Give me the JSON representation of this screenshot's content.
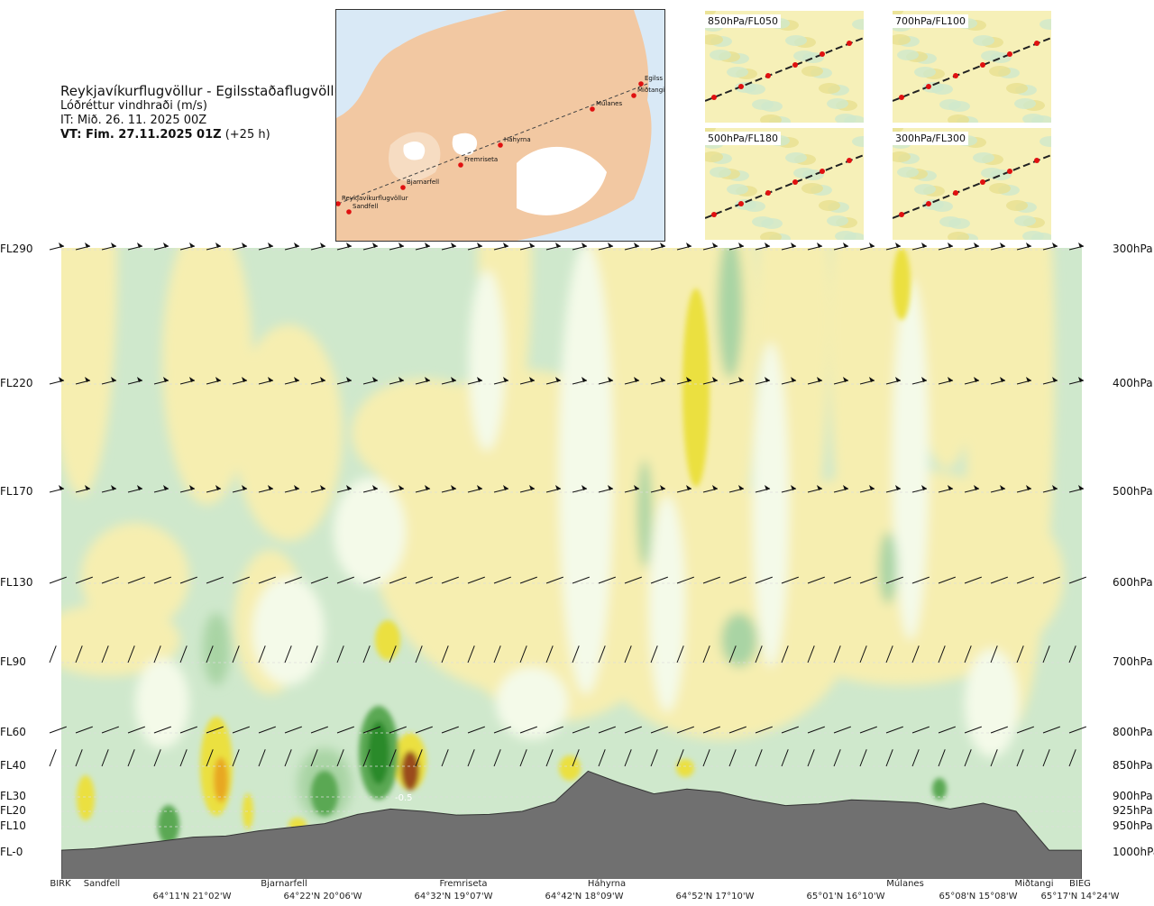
{
  "header": {
    "route": "Reykjavíkurflugvöllur - Egilsstaðaflugvöllur",
    "variable": "Lóðréttur vindhraði (m/s)",
    "issue_time": "IT: Mið. 26. 11. 2025 00Z",
    "valid_time": "VT: Fim. 27.11.2025 01Z",
    "valid_offset": "(+25 h)"
  },
  "map": {
    "points": [
      {
        "name": "Reykjavíkurflugvöllur"
      },
      {
        "name": "Sandfell"
      },
      {
        "name": "Bjarnarfell"
      },
      {
        "name": "Fremriseta"
      },
      {
        "name": "Háhyrna"
      },
      {
        "name": "Múlanes"
      },
      {
        "name": "Miðtangi"
      },
      {
        "name": "Egilss"
      }
    ]
  },
  "thumbnails": [
    {
      "label": "850hPa/FL050"
    },
    {
      "label": "700hPa/FL100"
    },
    {
      "label": "500hPa/FL180"
    },
    {
      "label": "300hPa/FL300"
    }
  ],
  "annotation": "-0.5",
  "colors": {
    "light_green": "#cfe8cc",
    "mid_green": "#a9d4a4",
    "green": "#5aa852",
    "dark_green": "#2a8a2a",
    "pale": "#f4fae9",
    "light_yellow": "#f6eeb0",
    "yellow": "#ebe040",
    "orange": "#e8a820",
    "brown": "#9a4b1a",
    "terrain": "#707070"
  },
  "chart_data": {
    "type": "heatmap",
    "title": "Lóðréttur vindhraði (m/s)",
    "levels_left": [
      "FL290",
      "FL220",
      "FL170",
      "FL130",
      "FL90",
      "FL60",
      "FL40",
      "FL30",
      "FL20",
      "FL10",
      "FL-0"
    ],
    "levels_right": [
      "300hPa",
      "400hPa",
      "500hPa",
      "600hPa",
      "700hPa",
      "800hPa",
      "850hPa",
      "900hPa",
      "925hPa",
      "950hPa",
      "1000hPa"
    ],
    "x_points": [
      "BIRK",
      "Sandfell",
      "Bjarnarfell",
      "Fremriseta",
      "Háhyrna",
      "Múlanes",
      "Miðtangi",
      "BIEG"
    ],
    "x_coords": [
      "64°11'N 21°02'W",
      "64°22'N 20°06'W",
      "64°32'N 19°07'W",
      "64°42'N 18°09'W",
      "64°52'N 17°10'W",
      "65°01'N 16°10'W",
      "65°08'N 15°08'W",
      "65°17'N 14°24'W"
    ],
    "terrain_profile_pressure_hPa": [
      995,
      992,
      985,
      978,
      970,
      968,
      958,
      951,
      945,
      930,
      921,
      925,
      931,
      930,
      925,
      908,
      858,
      878,
      895,
      887,
      892,
      905,
      915,
      912,
      905,
      907,
      910,
      921,
      911,
      925,
      995,
      995
    ],
    "annotation_value": -0.5
  }
}
